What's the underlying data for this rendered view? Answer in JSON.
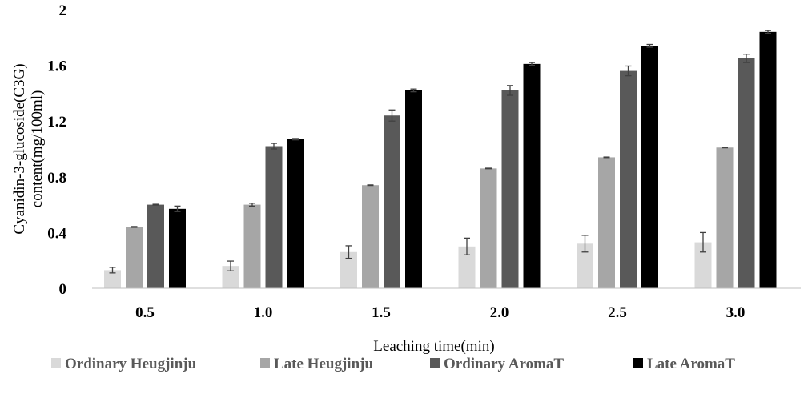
{
  "chart_data": {
    "type": "bar",
    "xlabel": "Leaching time(min)",
    "ylabel_lines": [
      "Cyanidin-3-glucoside(C3G)",
      "content(mg/100ml)"
    ],
    "ylim": [
      0,
      2
    ],
    "yticks": [
      0,
      0.4,
      0.8,
      1.2,
      1.6,
      2
    ],
    "ytick_labels": [
      "0",
      "0.4",
      "0.8",
      "1.2",
      "1.6",
      "2"
    ],
    "categories": [
      "0.5",
      "1.0",
      "1.5",
      "2.0",
      "2.5",
      "3.0"
    ],
    "grid": false,
    "legend_position": "bottom",
    "series": [
      {
        "name": "Ordinary Heugjinju",
        "color": "#d9d9d9",
        "values": [
          0.13,
          0.16,
          0.26,
          0.3,
          0.32,
          0.33
        ],
        "errors": [
          0.02,
          0.035,
          0.045,
          0.06,
          0.06,
          0.07
        ]
      },
      {
        "name": "Late Heugjinju",
        "color": "#a6a6a6",
        "values": [
          0.44,
          0.6,
          0.74,
          0.86,
          0.94,
          1.01
        ],
        "errors": [
          0.003,
          0.01,
          0.002,
          0.002,
          0.002,
          0.002
        ]
      },
      {
        "name": "Ordinary AromaT",
        "color": "#595959",
        "values": [
          0.6,
          1.02,
          1.24,
          1.42,
          1.56,
          1.65
        ],
        "errors": [
          0.003,
          0.02,
          0.04,
          0.035,
          0.035,
          0.03
        ]
      },
      {
        "name": "Late AromaT",
        "color": "#000000",
        "values": [
          0.57,
          1.07,
          1.42,
          1.61,
          1.74,
          1.84
        ],
        "errors": [
          0.02,
          0.005,
          0.01,
          0.01,
          0.01,
          0.01
        ]
      }
    ]
  }
}
